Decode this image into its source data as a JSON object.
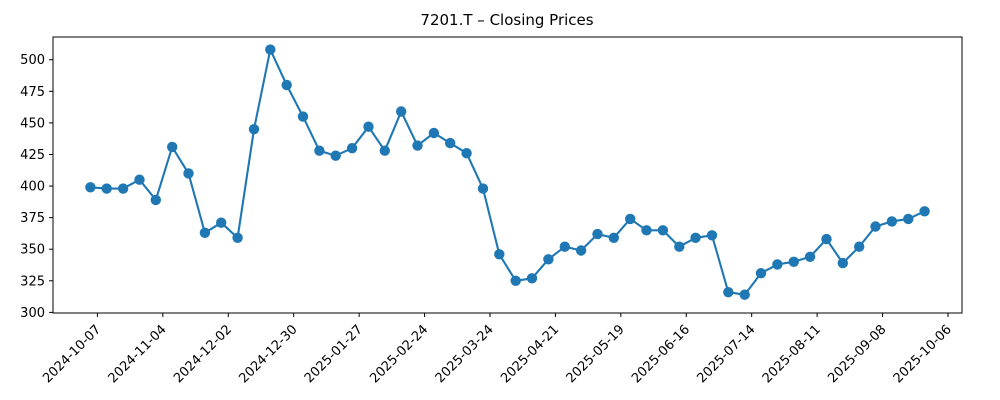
{
  "chart_data": {
    "type": "line",
    "title": "7201.T – Closing Prices",
    "grid": false,
    "legend": null,
    "line_color": "#1f77b4",
    "marker": "circle",
    "background_color": "#ffffff",
    "axis_color": "#000000",
    "ylim": [
      299.5,
      518
    ],
    "xlim": [
      "2024-09-18",
      "2025-10-12"
    ],
    "yticks": [
      300,
      325,
      350,
      375,
      400,
      425,
      450,
      475,
      500
    ],
    "xticks": [
      "2024-10-07",
      "2024-11-04",
      "2024-12-02",
      "2024-12-30",
      "2025-01-27",
      "2025-02-24",
      "2025-03-24",
      "2025-04-21",
      "2025-05-19",
      "2025-06-16",
      "2025-07-14",
      "2025-08-11",
      "2025-09-08",
      "2025-10-06"
    ],
    "series": [
      {
        "name": "Close",
        "x": [
          "2024-10-04",
          "2024-10-11",
          "2024-10-18",
          "2024-10-25",
          "2024-11-01",
          "2024-11-08",
          "2024-11-15",
          "2024-11-22",
          "2024-11-29",
          "2024-12-06",
          "2024-12-13",
          "2024-12-20",
          "2024-12-27",
          "2025-01-03",
          "2025-01-10",
          "2025-01-17",
          "2025-01-24",
          "2025-01-31",
          "2025-02-07",
          "2025-02-14",
          "2025-02-21",
          "2025-02-28",
          "2025-03-07",
          "2025-03-14",
          "2025-03-21",
          "2025-03-28",
          "2025-04-04",
          "2025-04-11",
          "2025-04-18",
          "2025-04-25",
          "2025-05-02",
          "2025-05-09",
          "2025-05-16",
          "2025-05-23",
          "2025-05-30",
          "2025-06-06",
          "2025-06-13",
          "2025-06-20",
          "2025-06-27",
          "2025-07-04",
          "2025-07-11",
          "2025-07-18",
          "2025-07-25",
          "2025-08-01",
          "2025-08-08",
          "2025-08-15",
          "2025-08-22",
          "2025-08-29",
          "2025-09-05",
          "2025-09-12",
          "2025-09-19",
          "2025-09-26"
        ],
        "values": [
          399,
          398,
          398,
          405,
          389,
          431,
          410,
          363,
          371,
          359,
          445,
          508,
          480,
          455,
          428,
          424,
          430,
          447,
          428,
          459,
          432,
          442,
          434,
          426,
          398,
          346,
          325,
          327,
          342,
          352,
          349,
          362,
          359,
          374,
          365,
          365,
          352,
          359,
          361,
          316,
          314,
          331,
          338,
          340,
          344,
          358,
          339,
          352,
          368,
          372,
          374,
          380
        ]
      }
    ]
  }
}
